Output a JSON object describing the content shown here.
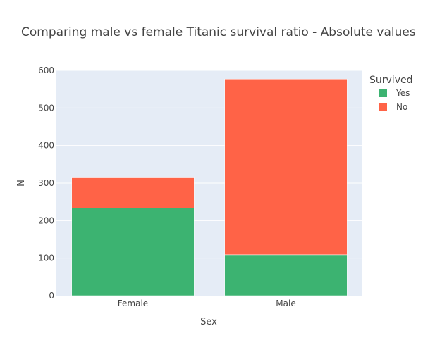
{
  "colors": {
    "plot_bg": "#e5ecf6",
    "grid": "#ffffff",
    "text": "#444444"
  },
  "chart_data": {
    "type": "bar",
    "stacked": true,
    "title": "Comparing male vs female Titanic survival ratio - Absolute values",
    "xlabel": "Sex",
    "ylabel": "N",
    "categories": [
      "Female",
      "Male"
    ],
    "ylim": [
      0,
      600
    ],
    "yticks": [
      0,
      100,
      200,
      300,
      400,
      500,
      600
    ],
    "grid": true,
    "legend": {
      "title": "Survived",
      "placement": "top-right"
    },
    "series": [
      {
        "name": "Yes",
        "color": "#3cb371",
        "values": [
          233,
          109
        ]
      },
      {
        "name": "No",
        "color": "#ff6347",
        "values": [
          81,
          468
        ]
      }
    ]
  }
}
